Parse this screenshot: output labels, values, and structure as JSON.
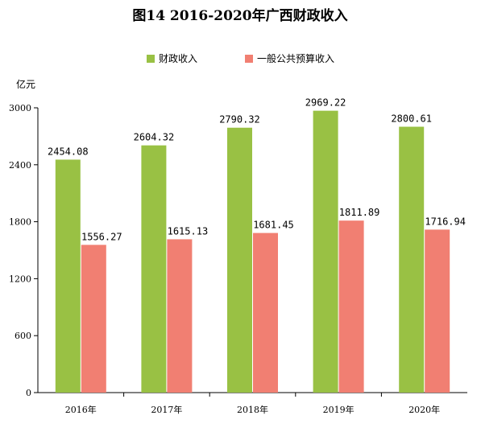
{
  "chart_data": {
    "type": "bar",
    "title": "图14 2016-2020年广西财政收入",
    "ylabel": "亿元",
    "xlabel": "",
    "categories": [
      "2016年",
      "2017年",
      "2018年",
      "2019年",
      "2020年"
    ],
    "series": [
      {
        "name": "财政收入",
        "values": [
          2454.08,
          2604.32,
          2790.32,
          2969.22,
          2800.61
        ],
        "color": "#99c144"
      },
      {
        "name": "一般公共预算收入",
        "values": [
          1556.27,
          1615.13,
          1681.45,
          1811.89,
          1716.94
        ],
        "color": "#f17f72"
      }
    ],
    "ylim": [
      0,
      3000
    ],
    "yticks": [
      0,
      600,
      1200,
      1800,
      2400,
      3000
    ],
    "data_labels": [
      [
        "2454.08",
        "2604.32",
        "2790.32",
        "2969.22",
        "2800.61"
      ],
      [
        "1556.27",
        "1615.13",
        "1681.45",
        "1811.89",
        "1716.94"
      ]
    ],
    "grid": false,
    "legend": "top-center"
  }
}
